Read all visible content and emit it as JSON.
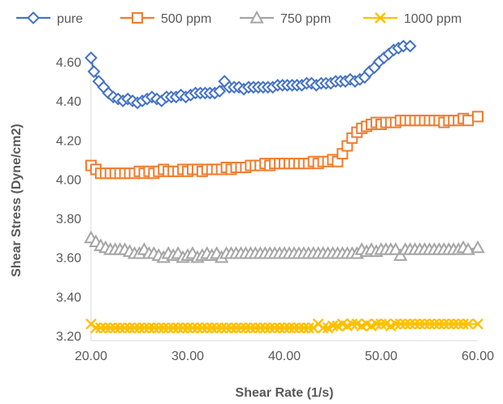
{
  "chart_data": {
    "type": "scatter",
    "xlabel": "Shear Rate (1/s)",
    "ylabel": "Shear Stress (Dyne/cm2)",
    "xlim": [
      20,
      60
    ],
    "ylim": [
      3.2,
      4.6
    ],
    "x_ticks": [
      "20.00",
      "30.00",
      "40.00",
      "50.00",
      "60.00"
    ],
    "y_ticks": [
      "3.20",
      "3.40",
      "3.60",
      "3.80",
      "4.00",
      "4.20",
      "4.40",
      "4.60"
    ],
    "grid": false,
    "legend_position": "top",
    "series": [
      {
        "name": "pure",
        "marker": "diamond",
        "color": "#4472C4",
        "points": [
          [
            20.0,
            4.62
          ],
          [
            20.3,
            4.55
          ],
          [
            20.8,
            4.5
          ],
          [
            21.3,
            4.47
          ],
          [
            21.8,
            4.44
          ],
          [
            22.3,
            4.42
          ],
          [
            22.8,
            4.41
          ],
          [
            23.3,
            4.4
          ],
          [
            23.8,
            4.41
          ],
          [
            24.3,
            4.4
          ],
          [
            24.8,
            4.39
          ],
          [
            25.3,
            4.4
          ],
          [
            25.8,
            4.41
          ],
          [
            26.3,
            4.42
          ],
          [
            26.8,
            4.41
          ],
          [
            27.3,
            4.4
          ],
          [
            27.8,
            4.42
          ],
          [
            28.3,
            4.42
          ],
          [
            28.8,
            4.42
          ],
          [
            29.3,
            4.43
          ],
          [
            29.8,
            4.42
          ],
          [
            30.3,
            4.43
          ],
          [
            30.8,
            4.44
          ],
          [
            31.3,
            4.44
          ],
          [
            31.8,
            4.44
          ],
          [
            32.3,
            4.44
          ],
          [
            32.8,
            4.44
          ],
          [
            33.3,
            4.45
          ],
          [
            33.8,
            4.5
          ],
          [
            34.3,
            4.47
          ],
          [
            34.8,
            4.47
          ],
          [
            35.3,
            4.47
          ],
          [
            35.8,
            4.46
          ],
          [
            36.3,
            4.47
          ],
          [
            36.8,
            4.47
          ],
          [
            37.3,
            4.47
          ],
          [
            37.8,
            4.47
          ],
          [
            38.3,
            4.47
          ],
          [
            38.8,
            4.47
          ],
          [
            39.3,
            4.48
          ],
          [
            39.8,
            4.48
          ],
          [
            40.3,
            4.48
          ],
          [
            40.8,
            4.48
          ],
          [
            41.3,
            4.48
          ],
          [
            41.8,
            4.48
          ],
          [
            42.3,
            4.49
          ],
          [
            42.8,
            4.49
          ],
          [
            43.3,
            4.48
          ],
          [
            43.8,
            4.49
          ],
          [
            44.3,
            4.49
          ],
          [
            44.8,
            4.49
          ],
          [
            45.3,
            4.5
          ],
          [
            45.8,
            4.5
          ],
          [
            46.3,
            4.5
          ],
          [
            46.8,
            4.51
          ],
          [
            47.3,
            4.5
          ],
          [
            47.8,
            4.51
          ],
          [
            48.3,
            4.52
          ],
          [
            48.8,
            4.55
          ],
          [
            49.3,
            4.57
          ],
          [
            49.8,
            4.6
          ],
          [
            50.3,
            4.62
          ],
          [
            50.8,
            4.64
          ],
          [
            51.3,
            4.66
          ],
          [
            51.8,
            4.67
          ],
          [
            52.3,
            4.68
          ],
          [
            53.0,
            4.68
          ]
        ]
      },
      {
        "name": "500 ppm",
        "marker": "square",
        "color": "#ED7D31",
        "points": [
          [
            20.0,
            4.07
          ],
          [
            20.5,
            4.05
          ],
          [
            21.0,
            4.03
          ],
          [
            21.5,
            4.03
          ],
          [
            22.0,
            4.03
          ],
          [
            22.5,
            4.03
          ],
          [
            23.0,
            4.03
          ],
          [
            23.5,
            4.03
          ],
          [
            24.0,
            4.03
          ],
          [
            24.5,
            4.03
          ],
          [
            25.0,
            4.04
          ],
          [
            25.5,
            4.03
          ],
          [
            26.0,
            4.04
          ],
          [
            26.5,
            4.03
          ],
          [
            27.0,
            4.04
          ],
          [
            27.5,
            4.05
          ],
          [
            28.0,
            4.04
          ],
          [
            28.5,
            4.04
          ],
          [
            29.0,
            4.04
          ],
          [
            29.5,
            4.05
          ],
          [
            30.0,
            4.04
          ],
          [
            30.5,
            4.05
          ],
          [
            31.0,
            4.05
          ],
          [
            31.5,
            4.04
          ],
          [
            32.0,
            4.05
          ],
          [
            32.5,
            4.05
          ],
          [
            33.0,
            4.05
          ],
          [
            33.5,
            4.05
          ],
          [
            34.0,
            4.06
          ],
          [
            34.5,
            4.05
          ],
          [
            35.0,
            4.06
          ],
          [
            35.5,
            4.06
          ],
          [
            36.0,
            4.06
          ],
          [
            36.5,
            4.07
          ],
          [
            37.0,
            4.07
          ],
          [
            37.5,
            4.07
          ],
          [
            38.0,
            4.08
          ],
          [
            38.5,
            4.07
          ],
          [
            39.0,
            4.08
          ],
          [
            39.5,
            4.08
          ],
          [
            40.0,
            4.08
          ],
          [
            40.5,
            4.08
          ],
          [
            41.0,
            4.08
          ],
          [
            41.5,
            4.08
          ],
          [
            42.0,
            4.08
          ],
          [
            42.5,
            4.08
          ],
          [
            43.0,
            4.09
          ],
          [
            43.5,
            4.08
          ],
          [
            44.0,
            4.09
          ],
          [
            44.5,
            4.09
          ],
          [
            45.0,
            4.1
          ],
          [
            45.5,
            4.09
          ],
          [
            46.0,
            4.13
          ],
          [
            46.5,
            4.17
          ],
          [
            47.0,
            4.21
          ],
          [
            47.5,
            4.24
          ],
          [
            48.0,
            4.26
          ],
          [
            48.5,
            4.27
          ],
          [
            49.0,
            4.28
          ],
          [
            49.5,
            4.29
          ],
          [
            50.0,
            4.28
          ],
          [
            50.5,
            4.29
          ],
          [
            51.0,
            4.29
          ],
          [
            51.5,
            4.29
          ],
          [
            52.0,
            4.3
          ],
          [
            52.5,
            4.3
          ],
          [
            53.0,
            4.3
          ],
          [
            53.5,
            4.3
          ],
          [
            54.0,
            4.3
          ],
          [
            54.5,
            4.3
          ],
          [
            55.0,
            4.3
          ],
          [
            55.5,
            4.3
          ],
          [
            56.0,
            4.3
          ],
          [
            56.5,
            4.29
          ],
          [
            57.0,
            4.3
          ],
          [
            57.5,
            4.3
          ],
          [
            58.0,
            4.3
          ],
          [
            58.5,
            4.31
          ],
          [
            59.0,
            4.3
          ],
          [
            60.0,
            4.32
          ]
        ]
      },
      {
        "name": "750 ppm",
        "marker": "triangle",
        "color": "#A5A5A5",
        "points": [
          [
            20.0,
            3.7
          ],
          [
            20.5,
            3.68
          ],
          [
            21.0,
            3.66
          ],
          [
            21.5,
            3.65
          ],
          [
            22.0,
            3.64
          ],
          [
            22.5,
            3.64
          ],
          [
            23.0,
            3.64
          ],
          [
            23.5,
            3.64
          ],
          [
            24.0,
            3.63
          ],
          [
            24.5,
            3.62
          ],
          [
            25.0,
            3.62
          ],
          [
            25.5,
            3.64
          ],
          [
            26.0,
            3.62
          ],
          [
            26.5,
            3.62
          ],
          [
            27.0,
            3.61
          ],
          [
            27.5,
            3.6
          ],
          [
            28.0,
            3.62
          ],
          [
            28.5,
            3.61
          ],
          [
            29.0,
            3.62
          ],
          [
            29.5,
            3.6
          ],
          [
            30.0,
            3.61
          ],
          [
            30.5,
            3.62
          ],
          [
            31.0,
            3.6
          ],
          [
            31.5,
            3.61
          ],
          [
            32.0,
            3.62
          ],
          [
            32.5,
            3.61
          ],
          [
            33.0,
            3.62
          ],
          [
            33.5,
            3.6
          ],
          [
            34.0,
            3.62
          ],
          [
            34.5,
            3.62
          ],
          [
            35.0,
            3.62
          ],
          [
            35.5,
            3.62
          ],
          [
            36.0,
            3.62
          ],
          [
            36.5,
            3.62
          ],
          [
            37.0,
            3.62
          ],
          [
            37.5,
            3.62
          ],
          [
            38.0,
            3.62
          ],
          [
            38.5,
            3.62
          ],
          [
            39.0,
            3.62
          ],
          [
            39.5,
            3.62
          ],
          [
            40.0,
            3.62
          ],
          [
            40.5,
            3.62
          ],
          [
            41.0,
            3.62
          ],
          [
            41.5,
            3.62
          ],
          [
            42.0,
            3.62
          ],
          [
            42.5,
            3.62
          ],
          [
            43.0,
            3.62
          ],
          [
            43.5,
            3.62
          ],
          [
            44.0,
            3.62
          ],
          [
            44.5,
            3.62
          ],
          [
            45.0,
            3.62
          ],
          [
            45.5,
            3.62
          ],
          [
            46.0,
            3.62
          ],
          [
            46.5,
            3.62
          ],
          [
            47.0,
            3.62
          ],
          [
            47.5,
            3.62
          ],
          [
            48.0,
            3.64
          ],
          [
            48.5,
            3.63
          ],
          [
            49.0,
            3.64
          ],
          [
            49.5,
            3.63
          ],
          [
            50.0,
            3.64
          ],
          [
            50.5,
            3.64
          ],
          [
            51.0,
            3.64
          ],
          [
            51.5,
            3.64
          ],
          [
            52.0,
            3.61
          ],
          [
            52.5,
            3.64
          ],
          [
            53.0,
            3.64
          ],
          [
            53.5,
            3.64
          ],
          [
            54.0,
            3.64
          ],
          [
            54.5,
            3.64
          ],
          [
            55.0,
            3.64
          ],
          [
            55.5,
            3.64
          ],
          [
            56.0,
            3.64
          ],
          [
            56.5,
            3.64
          ],
          [
            57.0,
            3.64
          ],
          [
            57.5,
            3.64
          ],
          [
            58.0,
            3.64
          ],
          [
            58.5,
            3.65
          ],
          [
            59.0,
            3.64
          ],
          [
            60.0,
            3.65
          ]
        ]
      },
      {
        "name": "1000 ppm",
        "marker": "x",
        "color": "#FFC000",
        "points": [
          [
            20.0,
            3.26
          ],
          [
            20.5,
            3.24
          ],
          [
            21.0,
            3.24
          ],
          [
            21.5,
            3.24
          ],
          [
            22.0,
            3.24
          ],
          [
            22.5,
            3.24
          ],
          [
            23.0,
            3.24
          ],
          [
            23.5,
            3.24
          ],
          [
            24.0,
            3.24
          ],
          [
            24.5,
            3.24
          ],
          [
            25.0,
            3.24
          ],
          [
            25.5,
            3.24
          ],
          [
            26.0,
            3.24
          ],
          [
            26.5,
            3.24
          ],
          [
            27.0,
            3.24
          ],
          [
            27.5,
            3.24
          ],
          [
            28.0,
            3.24
          ],
          [
            28.5,
            3.24
          ],
          [
            29.0,
            3.24
          ],
          [
            29.5,
            3.24
          ],
          [
            30.0,
            3.24
          ],
          [
            30.5,
            3.24
          ],
          [
            31.0,
            3.24
          ],
          [
            31.5,
            3.24
          ],
          [
            32.0,
            3.24
          ],
          [
            32.5,
            3.24
          ],
          [
            33.0,
            3.24
          ],
          [
            33.5,
            3.24
          ],
          [
            34.0,
            3.24
          ],
          [
            34.5,
            3.24
          ],
          [
            35.0,
            3.24
          ],
          [
            35.5,
            3.24
          ],
          [
            36.0,
            3.24
          ],
          [
            36.5,
            3.24
          ],
          [
            37.0,
            3.24
          ],
          [
            37.5,
            3.24
          ],
          [
            38.0,
            3.24
          ],
          [
            38.5,
            3.24
          ],
          [
            39.0,
            3.24
          ],
          [
            39.5,
            3.24
          ],
          [
            40.0,
            3.24
          ],
          [
            40.5,
            3.24
          ],
          [
            41.0,
            3.24
          ],
          [
            41.5,
            3.24
          ],
          [
            42.0,
            3.24
          ],
          [
            42.5,
            3.24
          ],
          [
            43.0,
            3.24
          ],
          [
            43.5,
            3.26
          ],
          [
            44.0,
            3.24
          ],
          [
            44.5,
            3.24
          ],
          [
            45.0,
            3.25
          ],
          [
            45.5,
            3.25
          ],
          [
            46.0,
            3.26
          ],
          [
            46.5,
            3.25
          ],
          [
            47.0,
            3.26
          ],
          [
            47.5,
            3.26
          ],
          [
            48.0,
            3.25
          ],
          [
            48.5,
            3.26
          ],
          [
            49.0,
            3.25
          ],
          [
            49.5,
            3.26
          ],
          [
            50.0,
            3.26
          ],
          [
            50.5,
            3.26
          ],
          [
            51.0,
            3.25
          ],
          [
            51.5,
            3.26
          ],
          [
            52.0,
            3.26
          ],
          [
            52.5,
            3.26
          ],
          [
            53.0,
            3.26
          ],
          [
            53.5,
            3.26
          ],
          [
            54.0,
            3.26
          ],
          [
            54.5,
            3.26
          ],
          [
            55.0,
            3.26
          ],
          [
            55.5,
            3.26
          ],
          [
            56.0,
            3.26
          ],
          [
            56.5,
            3.26
          ],
          [
            57.0,
            3.26
          ],
          [
            57.5,
            3.26
          ],
          [
            58.0,
            3.26
          ],
          [
            58.5,
            3.26
          ],
          [
            59.0,
            3.26
          ],
          [
            60.0,
            3.26
          ]
        ]
      }
    ]
  }
}
